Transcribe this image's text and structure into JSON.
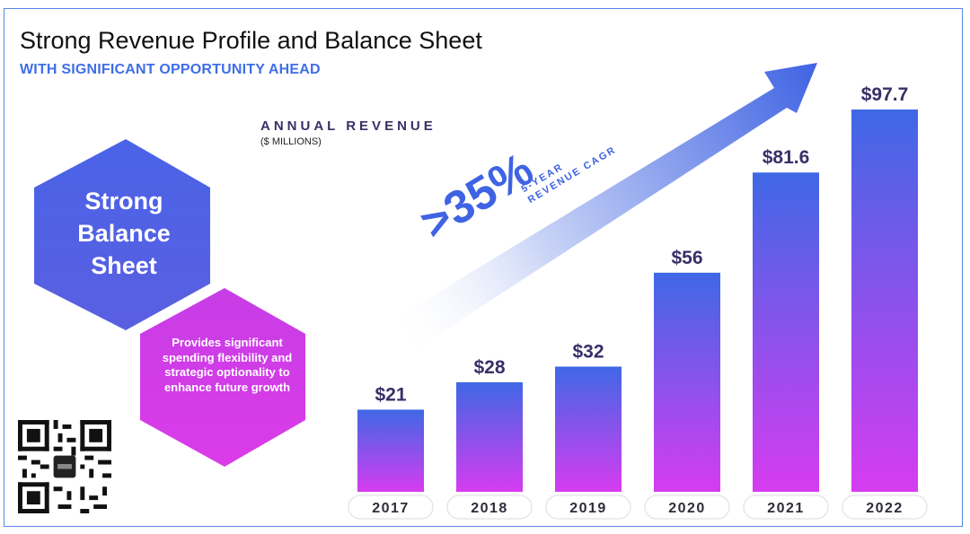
{
  "header": {
    "title": "Strong Revenue Profile and Balance Sheet",
    "subtitle": "WITH SIGNIFICANT OPPORTUNITY AHEAD"
  },
  "revenue_label": {
    "heading": "ANNUAL REVENUE",
    "units": "($ MILLIONS)"
  },
  "hexagons": {
    "main_line1": "Strong",
    "main_line2": "Balance",
    "main_line3": "Sheet",
    "detail": "Provides significant spending flexibility and strategic optionality to enhance future growth"
  },
  "cagr": {
    "value": ">35%",
    "label_line1": "5-YEAR",
    "label_line2": "REVENUE CAGR"
  },
  "colors": {
    "accent_blue": "#3f6ee8",
    "bar_top": "#3f68e6",
    "bar_bottom": "#d63cf0",
    "hex_blue": "#4a63e8",
    "hex_magenta": "#d23ce6",
    "label_dark": "#3a2f68"
  },
  "chart_data": {
    "type": "bar",
    "title": "ANNUAL REVENUE",
    "ylabel": "($ MILLIONS)",
    "xlabel": "",
    "categories": [
      "2017",
      "2018",
      "2019",
      "2020",
      "2021",
      "2022"
    ],
    "values": [
      21,
      28,
      32,
      56,
      81.6,
      97.7
    ],
    "value_labels": [
      "$21",
      "$28",
      "$32",
      "$56",
      "$81.6",
      "$97.7"
    ],
    "ylim": [
      0,
      100
    ],
    "grid": false,
    "legend": "none"
  }
}
